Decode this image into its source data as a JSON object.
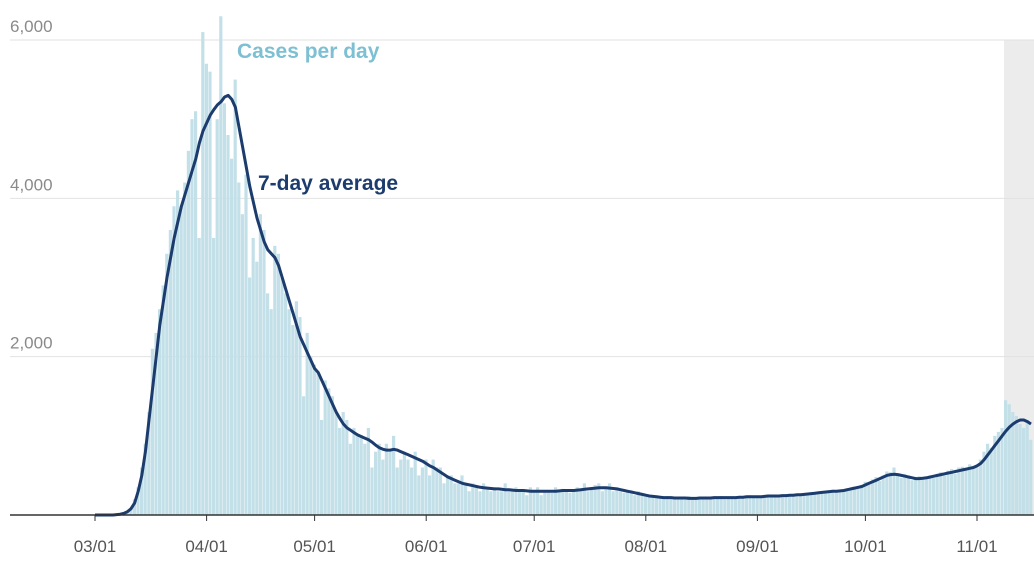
{
  "chart_data": {
    "type": "bar-line",
    "annotations": [
      "Cases per day",
      "7-day average"
    ],
    "x": [
      "03/01",
      "03/02",
      "03/03",
      "03/04",
      "03/05",
      "03/06",
      "03/07",
      "03/08",
      "03/09",
      "03/10",
      "03/11",
      "03/12",
      "03/13",
      "03/14",
      "03/15",
      "03/16",
      "03/17",
      "03/18",
      "03/19",
      "03/20",
      "03/21",
      "03/22",
      "03/23",
      "03/24",
      "03/25",
      "03/26",
      "03/27",
      "03/28",
      "03/29",
      "03/30",
      "03/31",
      "04/01",
      "04/02",
      "04/03",
      "04/04",
      "04/05",
      "04/06",
      "04/07",
      "04/08",
      "04/09",
      "04/10",
      "04/11",
      "04/12",
      "04/13",
      "04/14",
      "04/15",
      "04/16",
      "04/17",
      "04/18",
      "04/19",
      "04/20",
      "04/21",
      "04/22",
      "04/23",
      "04/24",
      "04/25",
      "04/26",
      "04/27",
      "04/28",
      "04/29",
      "04/30",
      "05/01",
      "05/02",
      "05/03",
      "05/04",
      "05/05",
      "05/06",
      "05/07",
      "05/08",
      "05/09",
      "05/10",
      "05/11",
      "05/12",
      "05/13",
      "05/14",
      "05/15",
      "05/16",
      "05/17",
      "05/18",
      "05/19",
      "05/20",
      "05/21",
      "05/22",
      "05/23",
      "05/24",
      "05/25",
      "05/26",
      "05/27",
      "05/28",
      "05/29",
      "05/30",
      "05/31",
      "06/01",
      "06/02",
      "06/03",
      "06/04",
      "06/05",
      "06/06",
      "06/07",
      "06/08",
      "06/09",
      "06/10",
      "06/11",
      "06/12",
      "06/13",
      "06/14",
      "06/15",
      "06/16",
      "06/17",
      "06/18",
      "06/19",
      "06/20",
      "06/21",
      "06/22",
      "06/23",
      "06/24",
      "06/25",
      "06/26",
      "06/27",
      "06/28",
      "06/29",
      "06/30",
      "07/01",
      "07/02",
      "07/03",
      "07/04",
      "07/05",
      "07/06",
      "07/07",
      "07/08",
      "07/09",
      "07/10",
      "07/11",
      "07/12",
      "07/13",
      "07/14",
      "07/15",
      "07/16",
      "07/17",
      "07/18",
      "07/19",
      "07/20",
      "07/21",
      "07/22",
      "07/23",
      "07/24",
      "07/25",
      "07/26",
      "07/27",
      "07/28",
      "07/29",
      "07/30",
      "07/31",
      "08/01",
      "08/02",
      "08/03",
      "08/04",
      "08/05",
      "08/06",
      "08/07",
      "08/08",
      "08/09",
      "08/10",
      "08/11",
      "08/12",
      "08/13",
      "08/14",
      "08/15",
      "08/16",
      "08/17",
      "08/18",
      "08/19",
      "08/20",
      "08/21",
      "08/22",
      "08/23",
      "08/24",
      "08/25",
      "08/26",
      "08/27",
      "08/28",
      "08/29",
      "08/30",
      "08/31",
      "09/01",
      "09/02",
      "09/03",
      "09/04",
      "09/05",
      "09/06",
      "09/07",
      "09/08",
      "09/09",
      "09/10",
      "09/11",
      "09/12",
      "09/13",
      "09/14",
      "09/15",
      "09/16",
      "09/17",
      "09/18",
      "09/19",
      "09/20",
      "09/21",
      "09/22",
      "09/23",
      "09/24",
      "09/25",
      "09/26",
      "09/27",
      "09/28",
      "09/29",
      "09/30",
      "10/01",
      "10/02",
      "10/03",
      "10/04",
      "10/05",
      "10/06",
      "10/07",
      "10/08",
      "10/09",
      "10/10",
      "10/11",
      "10/12",
      "10/13",
      "10/14",
      "10/15",
      "10/16",
      "10/17",
      "10/18",
      "10/19",
      "10/20",
      "10/21",
      "10/22",
      "10/23",
      "10/24",
      "10/25",
      "10/26",
      "10/27",
      "10/28",
      "10/29",
      "10/30",
      "10/31",
      "11/01",
      "11/02",
      "11/03",
      "11/04",
      "11/05",
      "11/06",
      "11/07",
      "11/08",
      "11/09",
      "11/10",
      "11/11",
      "11/12",
      "11/13",
      "11/14",
      "11/15",
      "11/16"
    ],
    "series": [
      {
        "name": "Cases per day",
        "kind": "bar",
        "color": "#c3e0e8",
        "values": [
          0,
          0,
          0,
          0,
          0,
          0,
          10,
          20,
          30,
          50,
          90,
          200,
          350,
          600,
          900,
          1300,
          2100,
          2300,
          2600,
          2900,
          3300,
          3600,
          3900,
          4100,
          3900,
          4200,
          4600,
          5000,
          5100,
          3500,
          6100,
          5700,
          5600,
          3500,
          5000,
          6300,
          5200,
          4800,
          4500,
          5500,
          4200,
          3800,
          4300,
          3000,
          3500,
          3200,
          3800,
          3600,
          2800,
          2600,
          3400,
          3300,
          3000,
          2800,
          2600,
          2400,
          2700,
          2500,
          1500,
          2300,
          2000,
          1900,
          1800,
          1200,
          1700,
          1600,
          1500,
          1300,
          1100,
          1300,
          1200,
          900,
          1100,
          1000,
          1000,
          900,
          1100,
          600,
          800,
          900,
          700,
          900,
          800,
          1000,
          600,
          700,
          800,
          700,
          600,
          800,
          500,
          600,
          700,
          500,
          700,
          600,
          600,
          400,
          500,
          500,
          400,
          400,
          500,
          400,
          300,
          400,
          350,
          300,
          400,
          350,
          300,
          350,
          300,
          300,
          400,
          300,
          300,
          350,
          300,
          300,
          250,
          350,
          300,
          350,
          250,
          300,
          300,
          280,
          350,
          300,
          330,
          300,
          280,
          300,
          350,
          330,
          400,
          300,
          320,
          380,
          400,
          300,
          350,
          400,
          300,
          320,
          300,
          280,
          320,
          270,
          250,
          300,
          250,
          240,
          230,
          250,
          220,
          230,
          210,
          240,
          210,
          200,
          230,
          220,
          210,
          240,
          200,
          210,
          230,
          200,
          220,
          230,
          210,
          220,
          240,
          200,
          230,
          220,
          210,
          240,
          230,
          220,
          250,
          230,
          220,
          240,
          230,
          260,
          230,
          250,
          220,
          260,
          240,
          250,
          270,
          240,
          250,
          270,
          260,
          280,
          290,
          270,
          300,
          280,
          300,
          320,
          290,
          310,
          300,
          340,
          330,
          360,
          350,
          380,
          420,
          390,
          450,
          480,
          430,
          500,
          550,
          540,
          600,
          500,
          470,
          520,
          480,
          440,
          470,
          490,
          450,
          480,
          500,
          470,
          520,
          540,
          500,
          560,
          580,
          520,
          600,
          610,
          560,
          640,
          620,
          600,
          700,
          800,
          900,
          850,
          1000,
          1050,
          1100,
          1450,
          1400,
          1300,
          1250,
          1150,
          1100,
          1200,
          950
        ]
      },
      {
        "name": "7-day average",
        "kind": "line",
        "color": "#1d3c6e",
        "values": [
          0,
          0,
          0,
          0,
          0,
          0,
          5,
          10,
          20,
          40,
          80,
          150,
          300,
          500,
          800,
          1200,
          1600,
          2000,
          2400,
          2700,
          3000,
          3250,
          3500,
          3700,
          3900,
          4050,
          4200,
          4350,
          4500,
          4700,
          4850,
          4950,
          5050,
          5120,
          5180,
          5220,
          5280,
          5300,
          5250,
          5150,
          4900,
          4650,
          4400,
          4150,
          3950,
          3750,
          3600,
          3450,
          3350,
          3300,
          3250,
          3150,
          3000,
          2850,
          2700,
          2550,
          2400,
          2250,
          2150,
          2050,
          1950,
          1850,
          1800,
          1700,
          1600,
          1500,
          1400,
          1300,
          1220,
          1150,
          1100,
          1070,
          1040,
          1010,
          990,
          970,
          950,
          920,
          880,
          850,
          830,
          820,
          820,
          830,
          820,
          800,
          780,
          760,
          740,
          720,
          700,
          680,
          650,
          620,
          600,
          570,
          540,
          510,
          480,
          460,
          440,
          420,
          400,
          390,
          380,
          370,
          360,
          350,
          345,
          340,
          335,
          330,
          330,
          325,
          320,
          320,
          315,
          310,
          310,
          310,
          305,
          300,
          300,
          300,
          300,
          300,
          300,
          300,
          300,
          305,
          310,
          310,
          310,
          310,
          315,
          320,
          325,
          330,
          335,
          340,
          345,
          345,
          345,
          340,
          335,
          330,
          320,
          310,
          300,
          290,
          280,
          270,
          260,
          250,
          240,
          235,
          230,
          225,
          220,
          220,
          220,
          215,
          215,
          215,
          215,
          210,
          210,
          210,
          215,
          215,
          215,
          215,
          220,
          220,
          220,
          220,
          220,
          220,
          220,
          225,
          225,
          230,
          230,
          230,
          230,
          230,
          235,
          240,
          240,
          240,
          240,
          245,
          245,
          250,
          250,
          255,
          255,
          260,
          265,
          270,
          275,
          280,
          285,
          290,
          295,
          300,
          300,
          305,
          310,
          320,
          330,
          340,
          350,
          360,
          380,
          400,
          420,
          440,
          460,
          480,
          500,
          510,
          515,
          510,
          500,
          490,
          480,
          470,
          460,
          460,
          465,
          470,
          480,
          490,
          500,
          510,
          520,
          530,
          540,
          550,
          560,
          570,
          580,
          590,
          600,
          620,
          650,
          700,
          760,
          820,
          880,
          940,
          1000,
          1060,
          1110,
          1150,
          1180,
          1200,
          1200,
          1180,
          1150
        ]
      }
    ],
    "ylim": [
      0,
      6000
    ],
    "yticks": [
      {
        "value": 2000,
        "label": "2,000"
      },
      {
        "value": 4000,
        "label": "4,000"
      },
      {
        "value": 6000,
        "label": "6,000"
      }
    ],
    "xticks": [
      "03/01",
      "04/01",
      "05/01",
      "06/01",
      "07/01",
      "08/01",
      "09/01",
      "10/01",
      "11/01"
    ],
    "grid": true,
    "shaded_from": "11/09"
  }
}
